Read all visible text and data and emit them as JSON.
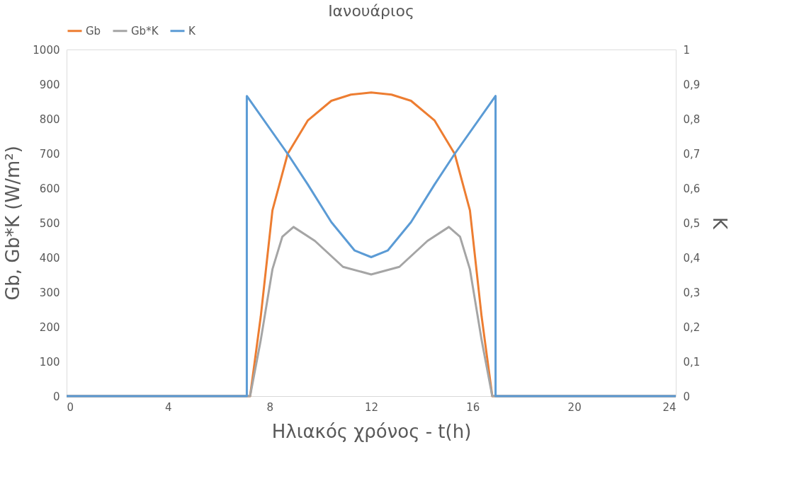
{
  "chart_data": {
    "type": "line",
    "title": "Ιανουάριος",
    "xlabel": "Ηλιακός χρόνος - t(h)",
    "ylabel": "Gb, Gb*K (W/m²)",
    "y2label": "K",
    "xlim": [
      0,
      24
    ],
    "xticks": [
      0,
      4,
      8,
      12,
      16,
      20,
      24
    ],
    "ylim": [
      0,
      1000
    ],
    "yticks": [
      0,
      100,
      200,
      300,
      400,
      500,
      600,
      700,
      800,
      900,
      1000
    ],
    "y2lim": [
      0,
      1
    ],
    "y2ticks": [
      0,
      {
        "value": 0.1,
        "label": "0,1"
      },
      {
        "value": 0.2,
        "label": "0,2"
      },
      {
        "value": 0.3,
        "label": "0,3"
      },
      {
        "value": 0.4,
        "label": "0,4"
      },
      {
        "value": 0.5,
        "label": "0,5"
      },
      {
        "value": 0.6,
        "label": "0,6"
      },
      {
        "value": 0.7,
        "label": "0,7"
      },
      {
        "value": 0.8,
        "label": "0,8"
      },
      {
        "value": 0.9,
        "label": "0,9"
      },
      1
    ],
    "grid": false,
    "legend": "top",
    "marker": "none",
    "line_style": "solid",
    "series": [
      {
        "name": "Gb",
        "color": "#ed7d31",
        "x": [
          0,
          7.23,
          7.65,
          8.11,
          8.71,
          9.5,
          10.43,
          11.2,
          12,
          12.8,
          13.57,
          14.5,
          15.29,
          15.89,
          16.35,
          16.77,
          24
        ],
        "values": [
          0,
          0,
          230,
          536,
          699,
          795,
          852,
          870,
          876,
          870,
          852,
          795,
          699,
          536,
          230,
          0,
          0
        ]
      },
      {
        "name": "Gb*K",
        "color": "#a5a5a5",
        "x": [
          0,
          7.23,
          7.65,
          8.11,
          8.5,
          8.94,
          9.78,
          10.89,
          12,
          13.11,
          14.22,
          15.06,
          15.5,
          15.89,
          16.35,
          16.77,
          24
        ],
        "values": [
          0,
          0,
          162,
          366,
          460,
          488,
          448,
          373,
          351,
          373,
          448,
          488,
          460,
          366,
          162,
          0,
          0
        ]
      },
      {
        "name": "K",
        "color": "#5b9bd5",
        "axis": "y2",
        "x": [
          0,
          7.1,
          7.1,
          8.71,
          9.5,
          10.43,
          11.35,
          12,
          12.65,
          13.57,
          14.5,
          15.29,
          16.9,
          16.9,
          24
        ],
        "values": [
          0,
          0,
          0.866,
          0.699,
          0.611,
          0.502,
          0.42,
          0.401,
          0.42,
          0.502,
          0.611,
          0.699,
          0.866,
          0,
          0
        ]
      }
    ]
  }
}
